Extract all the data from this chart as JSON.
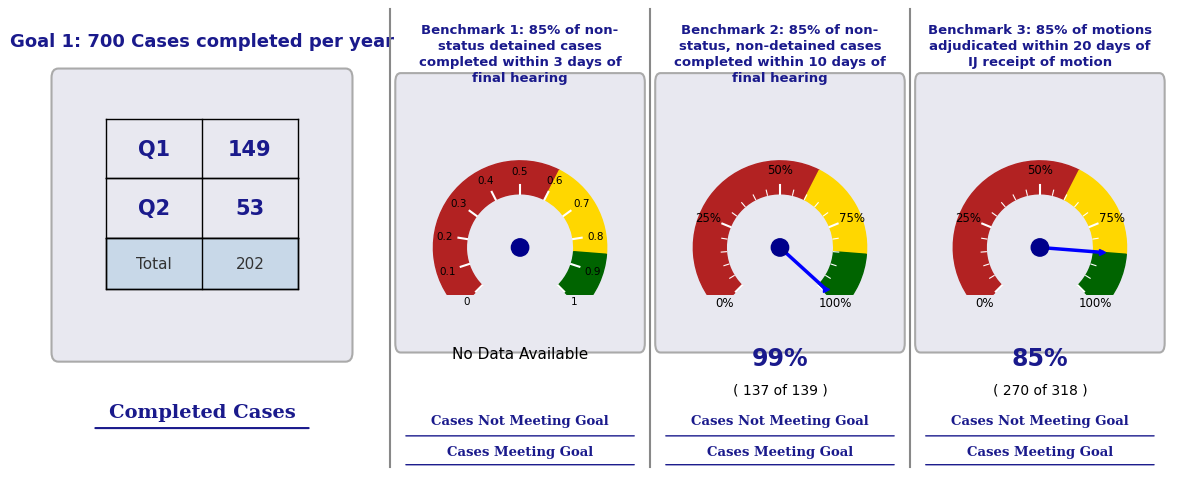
{
  "bg_color": "#ffffff",
  "panel_bg": "#e8e8f0",
  "text_color": "#1a1a8c",
  "dark_blue": "#00008B",
  "title1": "Goal 1: 700 Cases completed per year",
  "title2": "Benchmark 1: 85% of non-\nstatus detained cases\ncompleted within 3 days of\nfinal hearing",
  "title3": "Benchmark 2: 85% of non-\nstatus, non-detained cases\ncompleted within 10 days of\nfinal hearing",
  "title4": "Benchmark 3: 85% of motions\nadjudicated within 20 days of\nIJ receipt of motion",
  "table_rows": [
    [
      "Q1",
      "149"
    ],
    [
      "Q2",
      "53"
    ]
  ],
  "table_footer": [
    "Total",
    "202"
  ],
  "no_data_text": "No Data Available",
  "bench2_pct": "99%",
  "bench2_sub": "( 137 of 139 )",
  "bench3_pct": "85%",
  "bench3_sub": "( 270 of 318 )",
  "legend_red": "Cases Not Meeting Goal",
  "legend_green": "Cases Meeting Goal",
  "completed_cases": "Completed Cases",
  "gauge_colors": {
    "red": "#b22222",
    "yellow": "#ffd700",
    "green": "#006400"
  }
}
